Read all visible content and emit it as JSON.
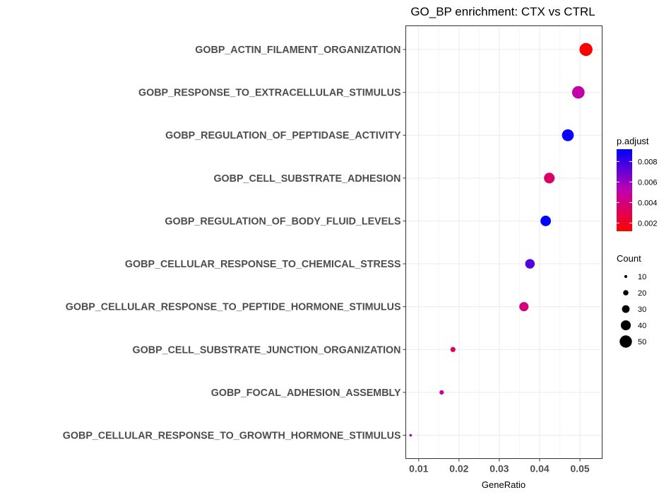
{
  "chart_data": {
    "type": "scatter",
    "title": "GO_BP enrichment: CTX vs CTRL",
    "xlabel": "GeneRatio",
    "ylabel": "",
    "xlim": [
      0.0068,
      0.0555
    ],
    "xticks": [
      0.01,
      0.02,
      0.03,
      0.04,
      0.05
    ],
    "xtick_labels": [
      "0.01",
      "0.02",
      "0.03",
      "0.04",
      "0.05"
    ],
    "grid": true,
    "legend_position": "right",
    "categories": [
      "GOBP_ACTIN_FILAMENT_ORGANIZATION",
      "GOBP_RESPONSE_TO_EXTRACELLULAR_STIMULUS",
      "GOBP_REGULATION_OF_PEPTIDASE_ACTIVITY",
      "GOBP_CELL_SUBSTRATE_ADHESION",
      "GOBP_REGULATION_OF_BODY_FLUID_LEVELS",
      "GOBP_CELLULAR_RESPONSE_TO_CHEMICAL_STRESS",
      "GOBP_CELLULAR_RESPONSE_TO_PEPTIDE_HORMONE_STIMULUS",
      "GOBP_CELL_SUBSTRATE_JUNCTION_ORGANIZATION",
      "GOBP_FOCAL_ADHESION_ASSEMBLY",
      "GOBP_CELLULAR_RESPONSE_TO_GROWTH_HORMONE_STIMULUS"
    ],
    "points": [
      {
        "term": "GOBP_ACTIN_FILAMENT_ORGANIZATION",
        "gene_ratio": 0.0515,
        "count": 53,
        "p_adjust": 0.0012
      },
      {
        "term": "GOBP_RESPONSE_TO_EXTRACELLULAR_STIMULUS",
        "gene_ratio": 0.0496,
        "count": 51,
        "p_adjust": 0.005
      },
      {
        "term": "GOBP_REGULATION_OF_PEPTIDASE_ACTIVITY",
        "gene_ratio": 0.047,
        "count": 48,
        "p_adjust": 0.009
      },
      {
        "term": "GOBP_CELL_SUBSTRATE_ADHESION",
        "gene_ratio": 0.0424,
        "count": 43,
        "p_adjust": 0.0035
      },
      {
        "term": "GOBP_REGULATION_OF_BODY_FLUID_LEVELS",
        "gene_ratio": 0.0415,
        "count": 42,
        "p_adjust": 0.0092
      },
      {
        "term": "GOBP_CELLULAR_RESPONSE_TO_CHEMICAL_STRESS",
        "gene_ratio": 0.0376,
        "count": 38,
        "p_adjust": 0.0075
      },
      {
        "term": "GOBP_CELLULAR_RESPONSE_TO_PEPTIDE_HORMONE_STIMULUS",
        "gene_ratio": 0.0361,
        "count": 37,
        "p_adjust": 0.004
      },
      {
        "term": "GOBP_CELL_SUBSTRATE_JUNCTION_ORGANIZATION",
        "gene_ratio": 0.0185,
        "count": 19,
        "p_adjust": 0.0032
      },
      {
        "term": "GOBP_FOCAL_ADHESION_ASSEMBLY",
        "gene_ratio": 0.0157,
        "count": 16,
        "p_adjust": 0.0048
      },
      {
        "term": "GOBP_CELLULAR_RESPONSE_TO_GROWTH_HORMONE_STIMULUS",
        "gene_ratio": 0.008,
        "count": 8,
        "p_adjust": 0.0058
      }
    ],
    "color_legend": {
      "title": "p.adjust",
      "min": 0.0012,
      "max": 0.0092,
      "low_color": "#ff0000",
      "high_color": "#0000ff",
      "ticks": [
        0.002,
        0.004,
        0.006,
        0.008
      ],
      "tick_labels": [
        "0.002",
        "0.004",
        "0.006",
        "0.008"
      ]
    },
    "size_legend": {
      "title": "Count",
      "values": [
        10,
        20,
        30,
        40,
        50
      ],
      "labels": [
        "10",
        "20",
        "30",
        "40",
        "50"
      ]
    }
  }
}
